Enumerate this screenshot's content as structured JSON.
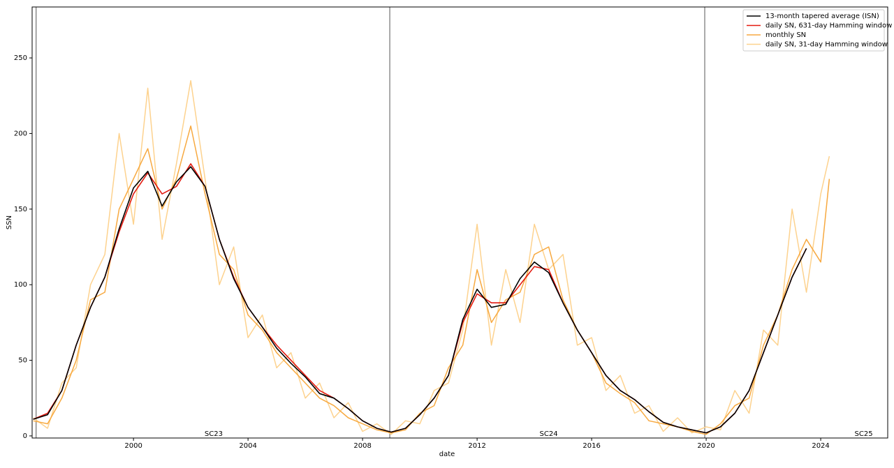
{
  "chart_data": {
    "type": "line",
    "xlabel": "date",
    "ylabel": "SSN",
    "x": [
      1996.5,
      1997,
      1997.5,
      1998,
      1998.5,
      1999,
      1999.5,
      2000,
      2000.5,
      2001,
      2001.5,
      2002,
      2002.5,
      2003,
      2003.5,
      2004,
      2004.5,
      2005,
      2005.5,
      2006,
      2006.5,
      2007,
      2007.5,
      2008,
      2008.5,
      2009,
      2009.5,
      2010,
      2010.5,
      2011,
      2011.5,
      2012,
      2012.5,
      2013,
      2013.5,
      2014,
      2014.5,
      2015,
      2015.5,
      2016,
      2016.5,
      2017,
      2017.5,
      2018,
      2018.5,
      2019,
      2019.5,
      2020,
      2020.5,
      2021,
      2021.5,
      2022,
      2022.5,
      2023,
      2023.5,
      2024,
      2024.3
    ],
    "series": [
      {
        "name": "daily SN, 31-day Hamming window",
        "color": "#fdd28e",
        "values": [
          12,
          5,
          35,
          45,
          100,
          120,
          200,
          140,
          230,
          130,
          180,
          235,
          170,
          100,
          125,
          65,
          80,
          45,
          55,
          25,
          35,
          12,
          22,
          3,
          8,
          1,
          10,
          8,
          30,
          35,
          70,
          140,
          60,
          110,
          75,
          140,
          110,
          120,
          60,
          65,
          30,
          40,
          15,
          20,
          3,
          12,
          2,
          6,
          4,
          30,
          15,
          70,
          60,
          150,
          95,
          160,
          185
        ]
      },
      {
        "name": "monthly SN",
        "color": "#f7a940",
        "values": [
          10,
          8,
          25,
          50,
          90,
          95,
          150,
          170,
          190,
          150,
          170,
          205,
          160,
          120,
          110,
          80,
          70,
          55,
          45,
          35,
          25,
          20,
          12,
          8,
          4,
          2,
          4,
          15,
          20,
          45,
          60,
          110,
          75,
          90,
          95,
          120,
          125,
          90,
          70,
          55,
          35,
          28,
          22,
          10,
          8,
          6,
          3,
          1,
          8,
          20,
          25,
          60,
          80,
          110,
          130,
          115,
          170
        ]
      },
      {
        "name": "daily SN, 631-day Hamming window",
        "color": "#e31a10",
        "values": [
          11,
          15,
          30,
          60,
          85,
          105,
          135,
          160,
          174,
          160,
          165,
          180,
          165,
          130,
          105,
          85,
          72,
          60,
          50,
          40,
          30,
          25,
          18,
          10,
          5,
          2.5,
          5,
          14,
          25,
          40,
          75,
          94,
          88,
          88,
          100,
          112,
          110,
          88,
          70,
          55,
          40,
          30,
          24,
          16,
          9,
          6,
          4,
          2,
          6,
          15,
          30,
          55,
          80,
          105,
          124,
          null,
          null
        ]
      },
      {
        "name": "13-month tapered average (ISN)",
        "color": "#000000",
        "values": [
          11,
          14,
          30,
          60,
          85,
          105,
          137,
          164,
          175,
          152,
          168,
          178,
          165,
          130,
          104,
          85,
          72,
          58,
          48,
          39,
          28,
          25,
          18,
          10,
          5,
          2.5,
          5,
          14,
          25,
          40,
          77,
          97,
          85,
          87,
          104,
          115,
          108,
          88,
          70,
          55,
          40,
          30,
          24,
          16,
          9,
          6,
          4,
          2,
          6,
          15,
          30,
          55,
          80,
          105,
          124,
          null,
          null
        ]
      }
    ],
    "legend_order": [
      3,
      2,
      1,
      0
    ],
    "legend": "upper right",
    "vlines": [
      1996.6,
      2008.95,
      2019.95
    ],
    "annotations": [
      {
        "text": "SC23",
        "x": 2002.8
      },
      {
        "text": "SC24",
        "x": 2014.5
      },
      {
        "text": "SC25",
        "x": 2025.5
      }
    ],
    "xlim": [
      1996.46,
      2026.34
    ],
    "ylim": [
      -1.4,
      283.7
    ],
    "xticks": [
      2000,
      2004,
      2008,
      2012,
      2016,
      2020,
      2024
    ],
    "yticks": [
      0,
      50,
      100,
      150,
      200,
      250
    ],
    "grid": false
  }
}
